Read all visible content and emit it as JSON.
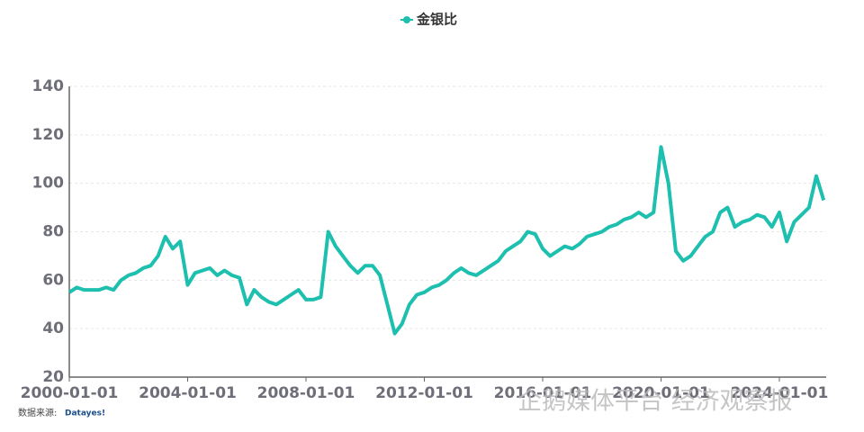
{
  "chart_data": {
    "type": "line",
    "legend": "top",
    "grid": true,
    "series": [
      {
        "name": "金银比",
        "color": "#1dbfae",
        "values": [
          55,
          57,
          56,
          56,
          56,
          57,
          56,
          60,
          62,
          63,
          65,
          66,
          70,
          78,
          73,
          76,
          58,
          63,
          64,
          65,
          62,
          64,
          62,
          61,
          50,
          56,
          53,
          51,
          50,
          52,
          54,
          56,
          52,
          52,
          53,
          80,
          74,
          70,
          66,
          63,
          66,
          66,
          62,
          50,
          38,
          42,
          50,
          54,
          55,
          57,
          58,
          60,
          63,
          65,
          63,
          62,
          64,
          66,
          68,
          72,
          74,
          76,
          80,
          79,
          73,
          70,
          72,
          74,
          73,
          75,
          78,
          79,
          80,
          82,
          83,
          85,
          86,
          88,
          86,
          88,
          115,
          100,
          72,
          68,
          70,
          74,
          78,
          80,
          88,
          90,
          82,
          84,
          85,
          87,
          86,
          82,
          88,
          76,
          84,
          87,
          90,
          103,
          93
        ]
      }
    ],
    "x": [
      "2000-01-01",
      "2000-04-01",
      "2000-07-01",
      "2000-10-01",
      "2001-01-01",
      "2001-04-01",
      "2001-07-01",
      "2001-10-01",
      "2002-01-01",
      "2002-04-01",
      "2002-07-01",
      "2002-10-01",
      "2003-01-01",
      "2003-04-01",
      "2003-07-01",
      "2003-10-01",
      "2004-01-01",
      "2004-04-01",
      "2004-07-01",
      "2004-10-01",
      "2005-01-01",
      "2005-04-01",
      "2005-07-01",
      "2005-10-01",
      "2006-01-01",
      "2006-04-01",
      "2006-07-01",
      "2006-10-01",
      "2007-01-01",
      "2007-04-01",
      "2007-07-01",
      "2007-10-01",
      "2008-01-01",
      "2008-04-01",
      "2008-07-01",
      "2008-10-01",
      "2009-01-01",
      "2009-04-01",
      "2009-07-01",
      "2009-10-01",
      "2010-01-01",
      "2010-04-01",
      "2010-07-01",
      "2010-10-01",
      "2011-01-01",
      "2011-04-01",
      "2011-07-01",
      "2011-10-01",
      "2012-01-01",
      "2012-04-01",
      "2012-07-01",
      "2012-10-01",
      "2013-01-01",
      "2013-04-01",
      "2013-07-01",
      "2013-10-01",
      "2014-01-01",
      "2014-04-01",
      "2014-07-01",
      "2014-10-01",
      "2015-01-01",
      "2015-04-01",
      "2015-07-01",
      "2015-10-01",
      "2016-01-01",
      "2016-04-01",
      "2016-07-01",
      "2016-10-01",
      "2017-01-01",
      "2017-04-01",
      "2017-07-01",
      "2017-10-01",
      "2018-01-01",
      "2018-04-01",
      "2018-07-01",
      "2018-10-01",
      "2019-01-01",
      "2019-04-01",
      "2019-07-01",
      "2019-10-01",
      "2020-01-01",
      "2020-04-01",
      "2020-07-01",
      "2020-10-01",
      "2021-01-01",
      "2021-04-01",
      "2021-07-01",
      "2021-10-01",
      "2022-01-01",
      "2022-04-01",
      "2022-07-01",
      "2022-10-01",
      "2023-01-01",
      "2023-04-01",
      "2023-07-01",
      "2023-10-01",
      "2024-01-01",
      "2024-04-01",
      "2024-07-01",
      "2024-10-01",
      "2025-01-01",
      "2025-04-01",
      "2025-07-01"
    ],
    "xlim": [
      "2000-01-01",
      "2025-08-01"
    ],
    "xticks": [
      "2000-01-01",
      "2004-01-01",
      "2008-01-01",
      "2012-01-01",
      "2016-01-01",
      "2020-01-01",
      "2024-01-01"
    ],
    "ylim": [
      20,
      140
    ],
    "yticks": [
      20,
      40,
      60,
      80,
      100,
      120,
      140
    ],
    "source": "数据来源:",
    "source_logo": "Datayes!",
    "watermark": "企鹅媒体平台 经济观察报"
  }
}
